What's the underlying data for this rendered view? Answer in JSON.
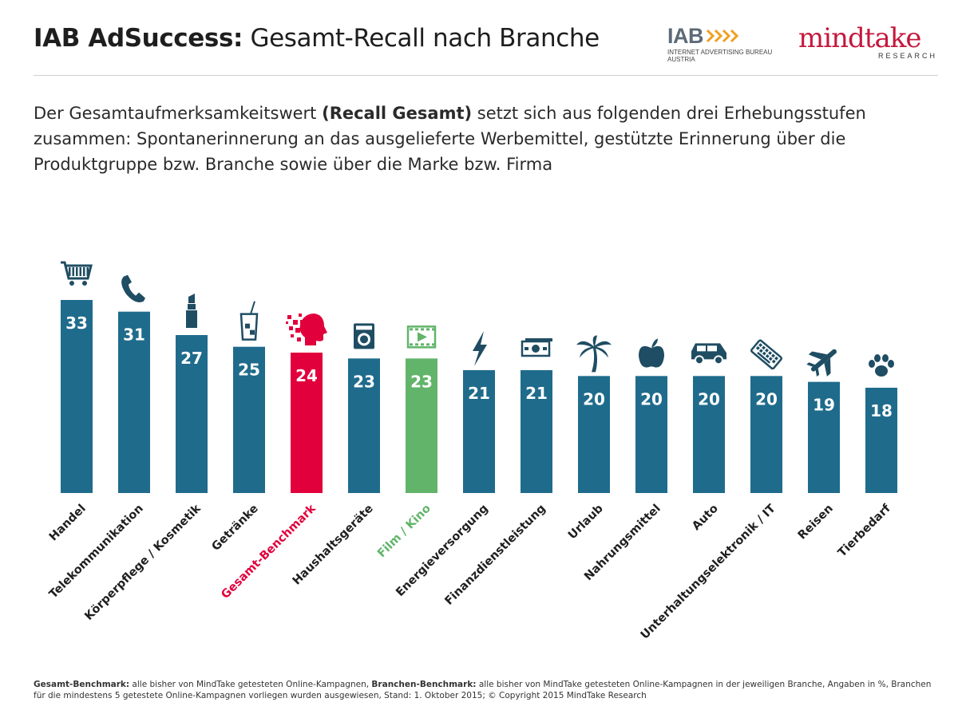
{
  "header": {
    "title_bold": "IAB AdSuccess:",
    "title_rest": " Gesamt-Recall nach Branche",
    "logo_iab": {
      "name": "IAB",
      "line1": "INTERNET ADVERTISING BUREAU",
      "line2": "AUSTRIA"
    },
    "logo_mindtake": {
      "name": "mindtake",
      "sub": "RESEARCH"
    }
  },
  "intro": {
    "part1": "Der Gesamtaufmerksamkeitswert ",
    "bold": "(Recall Gesamt)",
    "part2": " setzt sich aus folgenden drei Erhebungsstufen zusammen: Spontanerinnerung an das ausgelieferte Werbemittel, gestützte Erinnerung über die Produktgruppe bzw. Branche sowie über die Marke bzw. Firma"
  },
  "chart_data": {
    "type": "bar",
    "title": "",
    "xlabel": "",
    "ylabel": "",
    "ylim": [
      0,
      33
    ],
    "grid": false,
    "legend": "none",
    "categories": [
      "Handel",
      "Telekommunikation",
      "Körperpflege / Kosmetik",
      "Getränke",
      "Gesamt-Benchmark",
      "Haushaltsgeräte",
      "Film / Kino",
      "Energieversorgung",
      "Finanzdienstleistung",
      "Urlaub",
      "Nahrungsmittel",
      "Auto",
      "Unterhaltungselektronik / IT",
      "Reisen",
      "Tierbedarf"
    ],
    "values": [
      33,
      31,
      27,
      25,
      24,
      23,
      23,
      21,
      21,
      20,
      20,
      20,
      20,
      19,
      18
    ],
    "colors": [
      "#1f6b8c",
      "#1f6b8c",
      "#1f6b8c",
      "#1f6b8c",
      "#e1003c",
      "#1f6b8c",
      "#62b46a",
      "#1f6b8c",
      "#1f6b8c",
      "#1f6b8c",
      "#1f6b8c",
      "#1f6b8c",
      "#1f6b8c",
      "#1f6b8c",
      "#1f6b8c"
    ],
    "icons": [
      "shopping-cart-icon",
      "phone-icon",
      "lipstick-icon",
      "drink-glass-icon",
      "head-pixels-icon",
      "washing-machine-icon",
      "film-icon",
      "lightning-icon",
      "banknote-icon",
      "palm-tree-icon",
      "apple-icon",
      "car-icon",
      "keyboard-icon",
      "airplane-icon",
      "paw-icon"
    ]
  },
  "footnote": {
    "label1": "Gesamt-Benchmark:",
    "text1": " alle bisher von MindTake getesteten Online-Kampagnen, ",
    "label2": "Branchen-Benchmark:",
    "text2": " alle bisher von MindTake getesteten Online-Kampagnen in der jeweiligen Branche, Angaben in %, Branchen für die mindestens 5 getestete Online-Kampagnen vorliegen wurden ausgewiesen, Stand: 1. Oktober 2015; © Copyright 2015 MindTake Research"
  }
}
